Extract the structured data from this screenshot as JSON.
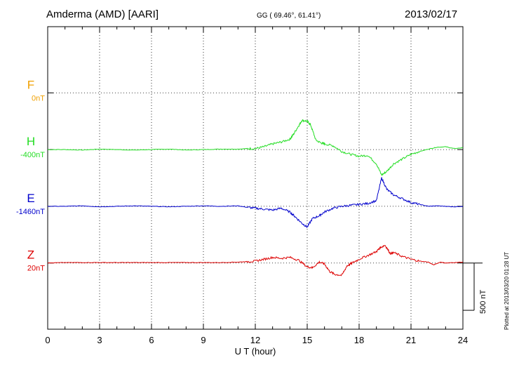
{
  "header": {
    "station": "Amderma (AMD)  [AARI]",
    "coords": "GG ( 69.46°,  61.41°)",
    "date": "2013/02/17"
  },
  "footer": {
    "plotted": "Plotted at 2013/03/20 01:28 UT"
  },
  "colors": {
    "F": "#f0a000",
    "H": "#22dd22",
    "E": "#0000cc",
    "Z": "#dd0000",
    "grid": "#000000"
  },
  "chart_data": {
    "type": "line",
    "title": "Amderma (AMD)  [AARI]",
    "xlabel": "U T (hour)",
    "xlim": [
      0,
      24
    ],
    "xticks": [
      0,
      3,
      6,
      9,
      12,
      15,
      18,
      21,
      24
    ],
    "scale_label": "500 nT",
    "scale_nT": 500,
    "ylim_nT": [
      -1600,
      1600
    ],
    "grid": true,
    "series": [
      {
        "name": "F",
        "offset_label": "0nT",
        "baseline_nT": 900,
        "values": []
      },
      {
        "name": "H",
        "offset_label": "-400nT",
        "baseline_nT": 300,
        "x": [
          0,
          1,
          2,
          3,
          4,
          5,
          6,
          7,
          8,
          9,
          10,
          11,
          11.5,
          12,
          12.5,
          13,
          13.5,
          14,
          14.2,
          14.5,
          14.7,
          15,
          15.2,
          15.5,
          15.8,
          16,
          16.5,
          17,
          17.5,
          18,
          18.5,
          19,
          19.3,
          19.6,
          20,
          20.5,
          21,
          21.5,
          22,
          22.5,
          23,
          23.5,
          24
        ],
        "y": [
          0,
          0,
          -5,
          5,
          0,
          -5,
          0,
          5,
          -5,
          0,
          5,
          5,
          10,
          10,
          30,
          60,
          80,
          110,
          160,
          250,
          310,
          300,
          260,
          100,
          70,
          60,
          40,
          -20,
          -50,
          -70,
          -60,
          -150,
          -270,
          -230,
          -150,
          -100,
          -50,
          -20,
          5,
          25,
          30,
          10,
          20
        ]
      },
      {
        "name": "E",
        "offset_label": "-1460nT",
        "baseline_nT": -300,
        "x": [
          0,
          1,
          2,
          3,
          4,
          5,
          6,
          7,
          8,
          9,
          10,
          11,
          11.5,
          12,
          12.5,
          13,
          13.5,
          14,
          14.3,
          14.7,
          15,
          15.3,
          15.7,
          16,
          16.5,
          17,
          17.5,
          18,
          18.5,
          19,
          19.3,
          19.6,
          20,
          20.5,
          21,
          21.5,
          22,
          22.5,
          23,
          23.5,
          24
        ],
        "y": [
          0,
          0,
          5,
          -5,
          0,
          5,
          0,
          -5,
          0,
          5,
          0,
          5,
          -10,
          -20,
          -30,
          -40,
          -20,
          -60,
          -110,
          -180,
          -220,
          -130,
          -100,
          -60,
          -20,
          0,
          10,
          20,
          30,
          60,
          300,
          180,
          120,
          80,
          40,
          20,
          0,
          5,
          0,
          -5,
          0
        ]
      },
      {
        "name": "Z",
        "offset_label": "20nT",
        "baseline_nT": -900,
        "x": [
          0,
          1,
          2,
          3,
          4,
          5,
          6,
          7,
          8,
          9,
          10,
          11,
          11.5,
          12,
          12.5,
          13,
          13.5,
          14,
          14.5,
          15,
          15.3,
          15.7,
          16,
          16.3,
          16.6,
          17,
          17.3,
          17.6,
          18,
          18.5,
          19,
          19.2,
          19.5,
          19.8,
          20,
          20.5,
          21,
          21.5,
          22,
          22.3,
          22.7,
          23,
          23.5,
          24
        ],
        "y": [
          0,
          5,
          5,
          5,
          5,
          5,
          5,
          5,
          5,
          5,
          5,
          10,
          15,
          20,
          40,
          60,
          50,
          60,
          30,
          -40,
          -50,
          10,
          -10,
          -90,
          -120,
          -130,
          -30,
          0,
          40,
          80,
          120,
          160,
          190,
          100,
          110,
          70,
          40,
          20,
          10,
          -20,
          10,
          0,
          5,
          10
        ]
      }
    ]
  }
}
